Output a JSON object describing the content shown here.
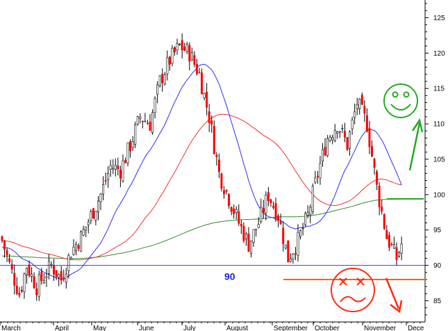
{
  "chart_data": {
    "type": "candlestick",
    "title": "",
    "xlabel": "",
    "ylabel": "",
    "ylim": [
      82,
      127
    ],
    "y_ticks": [
      85,
      90,
      95,
      100,
      105,
      110,
      115,
      120,
      125
    ],
    "y_tick_labels": [
      "85",
      "90",
      "95",
      "100",
      "105",
      "110",
      "115",
      "120",
      "125"
    ],
    "months": [
      "March",
      "April",
      "May",
      "June",
      "July",
      "August",
      "September",
      "October",
      "November",
      "Dece"
    ],
    "grid": false,
    "annotation_text": "90",
    "horizontal_levels": {
      "support": 90,
      "lower_red": 88,
      "green_bar": 99.4
    },
    "series": [
      {
        "name": "price",
        "kind": "candlestick",
        "anchors": [
          [
            0,
            93.5
          ],
          [
            4,
            89
          ],
          [
            7,
            86
          ],
          [
            10,
            90
          ],
          [
            14,
            87
          ],
          [
            17,
            88.5
          ],
          [
            20,
            90
          ],
          [
            24,
            88
          ],
          [
            28,
            92
          ],
          [
            32,
            94
          ],
          [
            36,
            97
          ],
          [
            40,
            100
          ],
          [
            44,
            104
          ],
          [
            48,
            103.5
          ],
          [
            52,
            107
          ],
          [
            56,
            111
          ],
          [
            60,
            110
          ],
          [
            64,
            116
          ],
          [
            68,
            119
          ],
          [
            72,
            121
          ],
          [
            76,
            120
          ],
          [
            80,
            117
          ],
          [
            84,
            111
          ],
          [
            88,
            103
          ],
          [
            92,
            99.5
          ],
          [
            96,
            96
          ],
          [
            100,
            93
          ],
          [
            104,
            96
          ],
          [
            108,
            100
          ],
          [
            112,
            97
          ],
          [
            116,
            91
          ],
          [
            120,
            93.5
          ],
          [
            124,
            97
          ],
          [
            128,
            103
          ],
          [
            132,
            108
          ],
          [
            136,
            110
          ],
          [
            140,
            107
          ],
          [
            144,
            113
          ],
          [
            148,
            110
          ],
          [
            152,
            101
          ],
          [
            156,
            94
          ],
          [
            160,
            91
          ],
          [
            162,
            93
          ]
        ]
      },
      {
        "name": "ma20",
        "color": "#2b2bff"
      },
      {
        "name": "ma50",
        "color": "#ee3030"
      },
      {
        "name": "ma200",
        "color": "#2e8b2e"
      }
    ],
    "colors": {
      "up": "#ffffff",
      "down": "#ff0000",
      "wick": "#000000",
      "support_line": "#3030ff",
      "lower_line": "#ff6000",
      "green_annotation": "#22aa22",
      "red_annotation": "#ff2a10"
    }
  },
  "icons": {
    "smiley": "smiley-face-icon",
    "sad": "sad-face-icon",
    "up_arrow": "up-arrow-icon",
    "down_arrow": "down-arrow-icon"
  }
}
